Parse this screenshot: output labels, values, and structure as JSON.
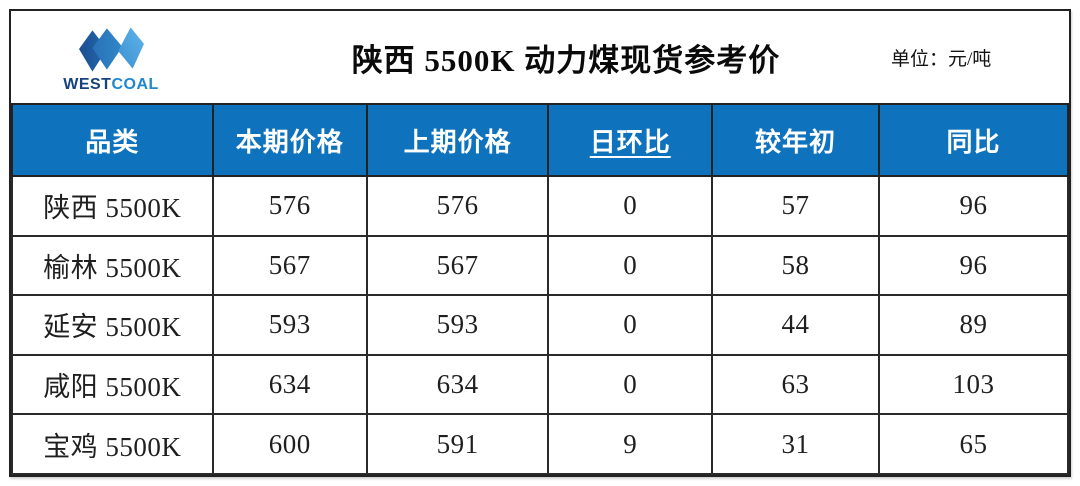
{
  "logo": {
    "west": "WEST",
    "coal": "COAL"
  },
  "header": {
    "title": "陕西 5500K 动力煤现货参考价",
    "unit": "单位：元/吨"
  },
  "chart_data": {
    "type": "table",
    "title": "陕西 5500K 动力煤现货参考价",
    "unit": "元/吨",
    "columns": [
      "品类",
      "本期价格",
      "上期价格",
      "日环比",
      "较年初",
      "同比"
    ],
    "underlined_column": "日环比",
    "rows": [
      [
        "陕西 5500K",
        576,
        576,
        0,
        57,
        96
      ],
      [
        "榆林 5500K",
        567,
        567,
        0,
        58,
        96
      ],
      [
        "延安 5500K",
        593,
        593,
        0,
        44,
        89
      ],
      [
        "咸阳 5500K",
        634,
        634,
        0,
        63,
        103
      ],
      [
        "宝鸡 5500K",
        600,
        591,
        9,
        31,
        65
      ]
    ]
  },
  "colors": {
    "header_bg": "#0F72BD",
    "grid": "#262626",
    "logo_west": "#16427F",
    "logo_coal": "#2187CE",
    "logo_dark_diamond": "#205A9E",
    "logo_mid_diamond": "#2E7EC5",
    "logo_light_diamond_start": "#3B8FD0",
    "logo_light_diamond_end": "#61B5EA"
  }
}
